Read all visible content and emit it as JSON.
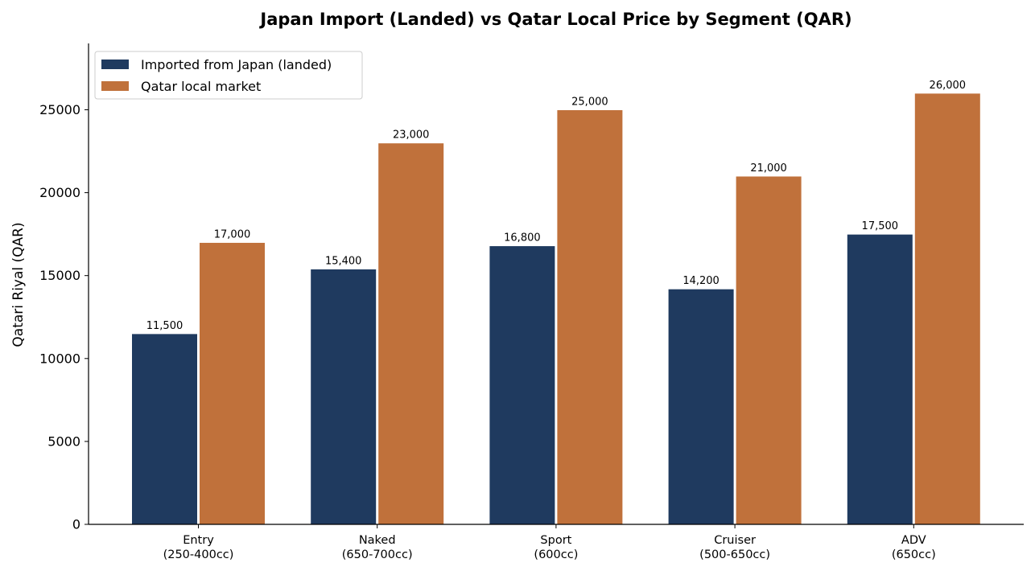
{
  "chart_data": {
    "type": "bar",
    "title": "Japan Import (Landed) vs Qatar Local Price by Segment (QAR)",
    "xlabel": "",
    "ylabel": "Qatari Riyal (QAR)",
    "ylim": [
      0,
      29000
    ],
    "yticks": [
      0,
      5000,
      10000,
      15000,
      20000,
      25000
    ],
    "ytick_labels": [
      "0",
      "5000",
      "10000",
      "15000",
      "20000",
      "25000"
    ],
    "grid": false,
    "legend_position": "top-left",
    "categories": [
      [
        "Entry",
        "(250-400cc)"
      ],
      [
        "Naked",
        "(650-700cc)"
      ],
      [
        "Sport",
        "(600cc)"
      ],
      [
        "Cruiser",
        "(500-650cc)"
      ],
      [
        "ADV",
        "(650cc)"
      ]
    ],
    "series": [
      {
        "name": "Imported from Japan (landed)",
        "color": "#1f3a5f",
        "values": [
          11500,
          15400,
          16800,
          14200,
          17500
        ],
        "value_labels": [
          "11,500",
          "15,400",
          "16,800",
          "14,200",
          "17,500"
        ]
      },
      {
        "name": "Qatar local market",
        "color": "#c0713b",
        "values": [
          17000,
          23000,
          25000,
          21000,
          26000
        ],
        "value_labels": [
          "17,000",
          "23,000",
          "25,000",
          "21,000",
          "26,000"
        ]
      }
    ]
  }
}
